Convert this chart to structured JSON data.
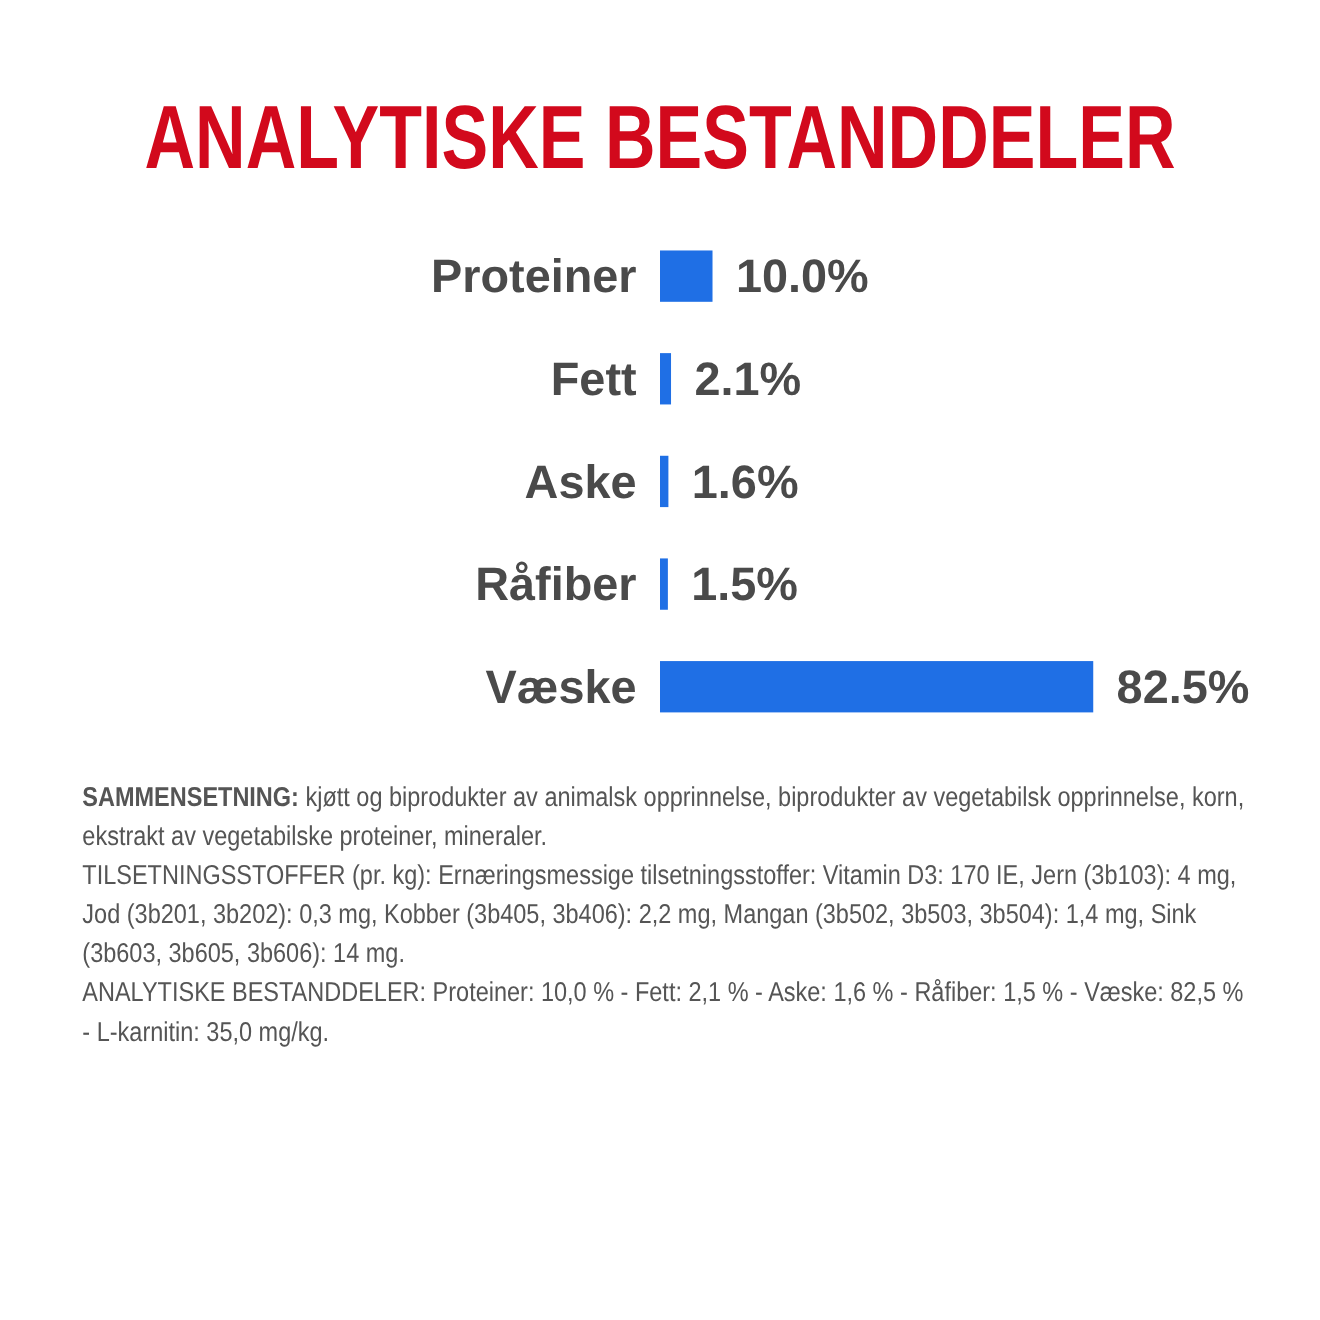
{
  "chart_data": {
    "type": "bar",
    "orientation": "horizontal",
    "title": "ANALYTISKE BESTANDDELER",
    "categories": [
      "Proteiner",
      "Fett",
      "Aske",
      "Råfiber",
      "Væske"
    ],
    "values": [
      10.0,
      2.1,
      1.6,
      1.5,
      82.5
    ],
    "value_labels": [
      "10.0%",
      "2.1%",
      "1.6%",
      "1.5%",
      "82.5%"
    ],
    "color": "#1f6fe5",
    "annotations": [
      "SAMMENSETNING: kjøtt og biprodukter av animalsk opprinnelse, biprodukter av vegetabilsk opprinnelse, korn, ekstrakt av vegetabilske proteiner, mineraler.",
      "TILSETNINGSSTOFFER (pr. kg): Ernæringsmessige tilsetningsstoffer: Vitamin D3: 170 IE, Jern (3b103): 4 mg, Jod (3b201, 3b202): 0,3 mg, Kobber (3b405, 3b406): 2,2 mg, Mangan (3b502, 3b503, 3b504): 1,4 mg, Sink (3b603, 3b605, 3b606): 14 mg.",
      "ANALYTISKE BESTANDDELER: Proteiner: 10,0 % - Fett: 2,1 % - Aske: 1,6 % - Råfiber: 1,5 % - Væske: 82,5 % - L-karnitin: 35,0 mg/kg."
    ]
  }
}
